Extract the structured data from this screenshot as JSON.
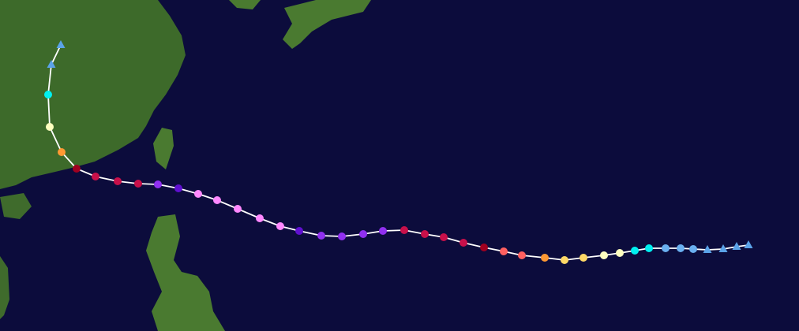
{
  "track": {
    "line_color": "#ffffff",
    "markers": [
      {
        "shape": "triangle",
        "color": "#5ba3e8"
      },
      {
        "shape": "triangle",
        "color": "#5ba3e8"
      },
      {
        "shape": "triangle",
        "color": "#5ba3e8"
      },
      {
        "shape": "triangle",
        "color": "#5ba3e8"
      },
      {
        "shape": "circle",
        "color": "#6ab0f0"
      },
      {
        "shape": "circle",
        "color": "#6ab0f0"
      },
      {
        "shape": "circle",
        "color": "#6ab0f0"
      },
      {
        "shape": "circle",
        "color": "#00f0f0"
      },
      {
        "shape": "circle",
        "color": "#00f0f0"
      },
      {
        "shape": "circle",
        "color": "#ffffc0"
      },
      {
        "shape": "circle",
        "color": "#ffffc0"
      },
      {
        "shape": "circle",
        "color": "#ffd966"
      },
      {
        "shape": "circle",
        "color": "#ffd966"
      },
      {
        "shape": "circle",
        "color": "#ff9933"
      },
      {
        "shape": "circle",
        "color": "#ff6060"
      },
      {
        "shape": "circle",
        "color": "#ff6060"
      },
      {
        "shape": "circle",
        "color": "#a00020"
      },
      {
        "shape": "circle",
        "color": "#c8104a"
      },
      {
        "shape": "circle",
        "color": "#c8104a"
      },
      {
        "shape": "circle",
        "color": "#c8104a"
      },
      {
        "shape": "circle",
        "color": "#c8104a"
      },
      {
        "shape": "circle",
        "color": "#9030f0"
      },
      {
        "shape": "circle",
        "color": "#9030f0"
      },
      {
        "shape": "circle",
        "color": "#9030f0"
      },
      {
        "shape": "circle",
        "color": "#9030f0"
      },
      {
        "shape": "circle",
        "color": "#6010d0"
      },
      {
        "shape": "circle",
        "color": "#ff88ff"
      },
      {
        "shape": "circle",
        "color": "#ff88ff"
      },
      {
        "shape": "circle",
        "color": "#ff88ff"
      },
      {
        "shape": "circle",
        "color": "#ff88ff"
      },
      {
        "shape": "circle",
        "color": "#ff88ff"
      },
      {
        "shape": "circle",
        "color": "#6010d0"
      },
      {
        "shape": "circle",
        "color": "#9030f0"
      },
      {
        "shape": "circle",
        "color": "#c8104a"
      },
      {
        "shape": "circle",
        "color": "#c8104a"
      },
      {
        "shape": "circle",
        "color": "#c8104a"
      },
      {
        "shape": "circle",
        "color": "#a00020"
      },
      {
        "shape": "circle",
        "color": "#ff9933"
      },
      {
        "shape": "circle",
        "color": "#ffffc0"
      },
      {
        "shape": "circle",
        "color": "#00f0f0"
      },
      {
        "shape": "triangle",
        "color": "#5ba3e8"
      },
      {
        "shape": "triangle",
        "color": "#5ba3e8"
      }
    ]
  }
}
